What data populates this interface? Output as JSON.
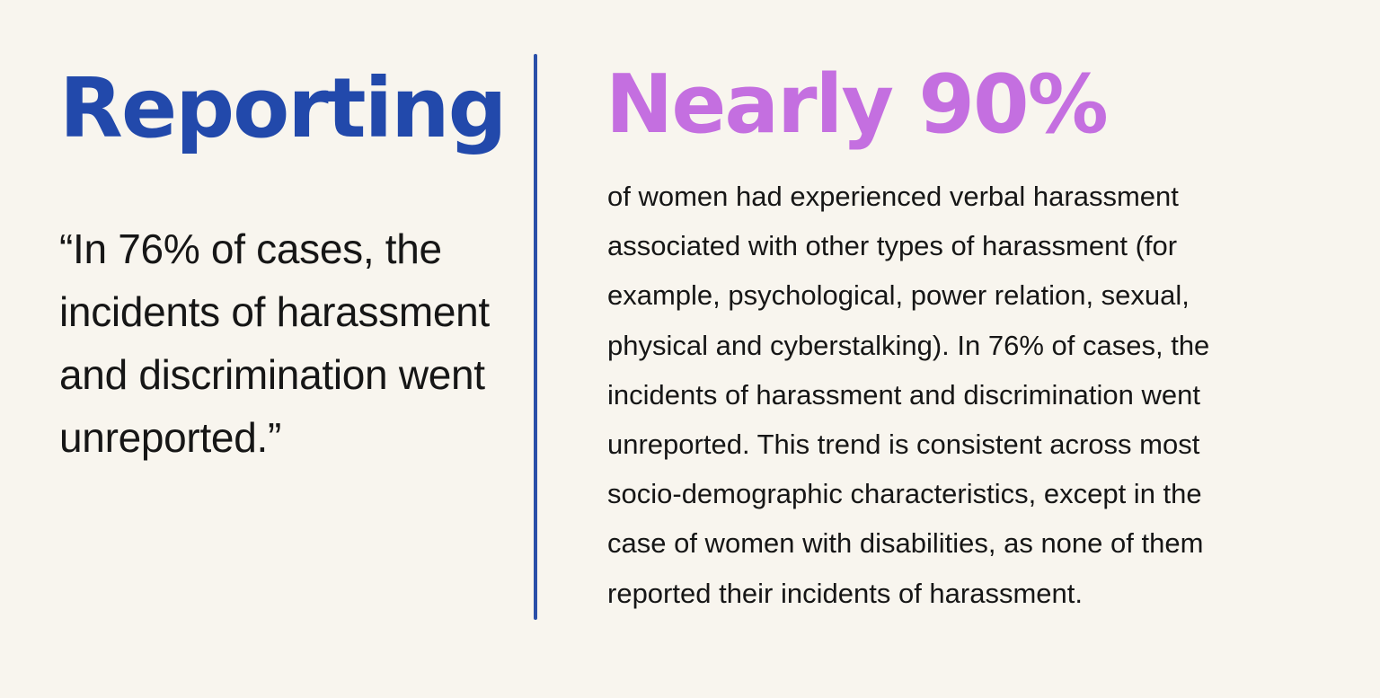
{
  "left": {
    "heading": "Reporting",
    "quote": "“In 76% of cases, the incidents of harassment and discrimination went unreported.”"
  },
  "right": {
    "heading": "Nearly 90%",
    "body_lines": [
      "of women had experienced verbal harassment",
      "associated with other types of harassment (for",
      "example, psychological, power relation, sexual,",
      "physical and cyberstalking). In 76% of cases, the",
      "incidents of harassment and discrimination went",
      "unreported. This trend is consistent across most",
      "socio-demographic characteristics, except in the",
      "case of women with disabilities, as none of them",
      "reported their incidents of harassment."
    ]
  },
  "colors": {
    "background": "#f8f5ee",
    "left_heading": "#2249ab",
    "right_heading": "#c46fe0",
    "divider": "#2a4fa8",
    "text": "#161616"
  }
}
